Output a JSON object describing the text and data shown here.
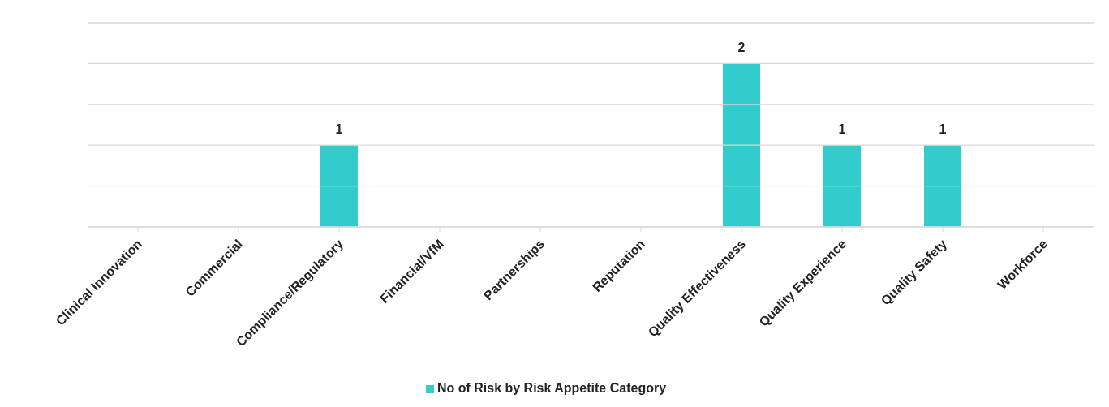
{
  "chart_data": {
    "type": "bar",
    "categories": [
      "Clinical Innovation",
      "Commercial",
      "Compliance/Regulatory",
      "Financial/VfM",
      "Partnerships",
      "Reputation",
      "Quality Effectiveness",
      "Quality Experience",
      "Quality Safety",
      "Workforce"
    ],
    "series": [
      {
        "name": "No of Risk by Risk Appetite Category",
        "color": "#33cccc",
        "values": [
          0,
          0,
          1,
          0,
          0,
          0,
          2,
          1,
          1,
          0
        ],
        "value_labels": [
          null,
          null,
          "1",
          null,
          null,
          null,
          "2",
          "1",
          "1",
          null
        ]
      }
    ],
    "ylim": [
      0,
      2.5
    ],
    "yticks": [
      {
        "value": 0,
        "label": null
      },
      {
        "value": 0.5,
        "label": null
      },
      {
        "value": 1,
        "label": null
      },
      {
        "value": 1.5,
        "label": null
      },
      {
        "value": 2,
        "label": null
      },
      {
        "value": 2.5,
        "label": null
      }
    ],
    "tick_labels": "x",
    "grid": "y",
    "legend": "bottom"
  }
}
